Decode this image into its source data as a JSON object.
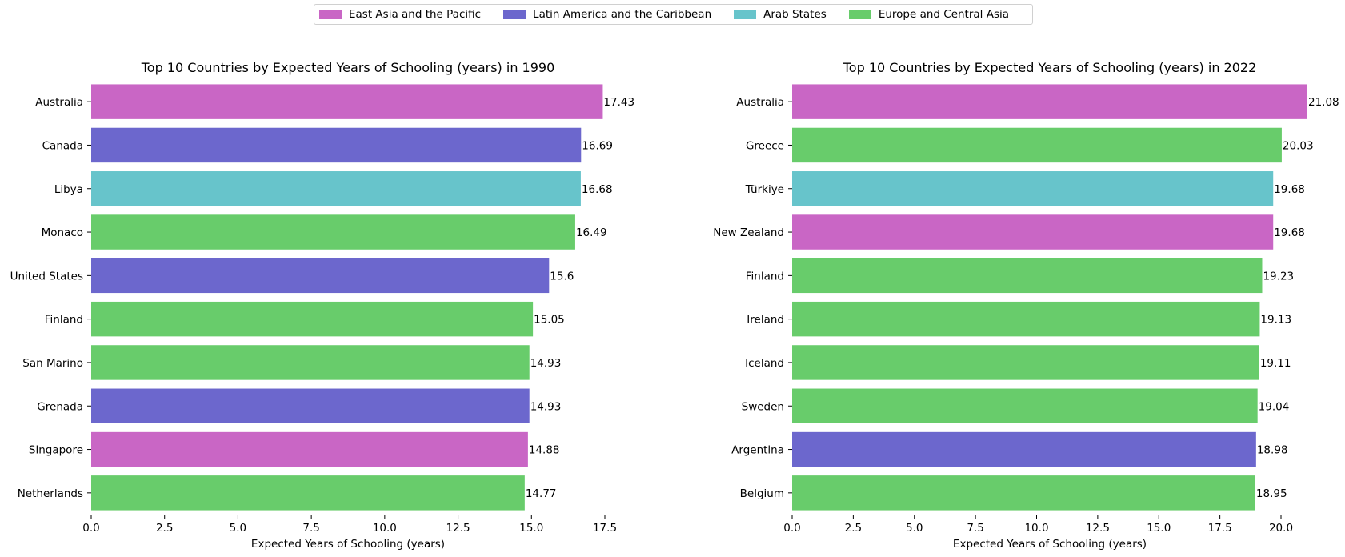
{
  "colors": {
    "East Asia and the Pacific": "#c966c5",
    "Latin America and the Caribbean": "#6c67cd",
    "Arab States": "#67c4cb",
    "Europe and Central Asia": "#68cc6b"
  },
  "legend": [
    {
      "label": "East Asia and the Pacific",
      "color": "#c966c5"
    },
    {
      "label": "Latin America and the Caribbean",
      "color": "#6c67cd"
    },
    {
      "label": "Arab States",
      "color": "#67c4cb"
    },
    {
      "label": "Europe and Central Asia",
      "color": "#68cc6b"
    }
  ],
  "chart_data": [
    {
      "type": "bar",
      "orientation": "horizontal",
      "title": "Top 10 Countries by Expected Years of Schooling (years) in 1990",
      "xlabel": "Expected Years of Schooling (years)",
      "xlim": [
        0,
        17.5
      ],
      "xticks": [
        "0.0",
        "2.5",
        "5.0",
        "7.5",
        "10.0",
        "12.5",
        "15.0",
        "17.5"
      ],
      "categories": [
        "Australia",
        "Canada",
        "Libya",
        "Monaco",
        "United States",
        "Finland",
        "San Marino",
        "Grenada",
        "Singapore",
        "Netherlands"
      ],
      "values": [
        17.43,
        16.69,
        16.68,
        16.49,
        15.6,
        15.05,
        14.93,
        14.93,
        14.88,
        14.77
      ],
      "value_labels": [
        "17.43",
        "16.69",
        "16.68",
        "16.49",
        "15.6",
        "15.05",
        "14.93",
        "14.93",
        "14.88",
        "14.77"
      ],
      "regions": [
        "East Asia and the Pacific",
        "Latin America and the Caribbean",
        "Arab States",
        "Europe and Central Asia",
        "Latin America and the Caribbean",
        "Europe and Central Asia",
        "Europe and Central Asia",
        "Latin America and the Caribbean",
        "East Asia and the Pacific",
        "Europe and Central Asia"
      ]
    },
    {
      "type": "bar",
      "orientation": "horizontal",
      "title": "Top 10 Countries by Expected Years of Schooling (years) in 2022",
      "xlabel": "Expected Years of Schooling (years)",
      "xlim": [
        0,
        21.08
      ],
      "xticks": [
        "0.0",
        "2.5",
        "5.0",
        "7.5",
        "10.0",
        "12.5",
        "15.0",
        "17.5",
        "20.0"
      ],
      "categories": [
        "Australia",
        "Greece",
        "Türkiye",
        "New Zealand",
        "Finland",
        "Ireland",
        "Iceland",
        "Sweden",
        "Argentina",
        "Belgium"
      ],
      "values": [
        21.08,
        20.03,
        19.68,
        19.68,
        19.23,
        19.13,
        19.11,
        19.04,
        18.98,
        18.95
      ],
      "value_labels": [
        "21.08",
        "20.03",
        "19.68",
        "19.68",
        "19.23",
        "19.13",
        "19.11",
        "19.04",
        "18.98",
        "18.95"
      ],
      "regions": [
        "East Asia and the Pacific",
        "Europe and Central Asia",
        "Arab States",
        "East Asia and the Pacific",
        "Europe and Central Asia",
        "Europe and Central Asia",
        "Europe and Central Asia",
        "Europe and Central Asia",
        "Latin America and the Caribbean",
        "Europe and Central Asia"
      ]
    }
  ]
}
